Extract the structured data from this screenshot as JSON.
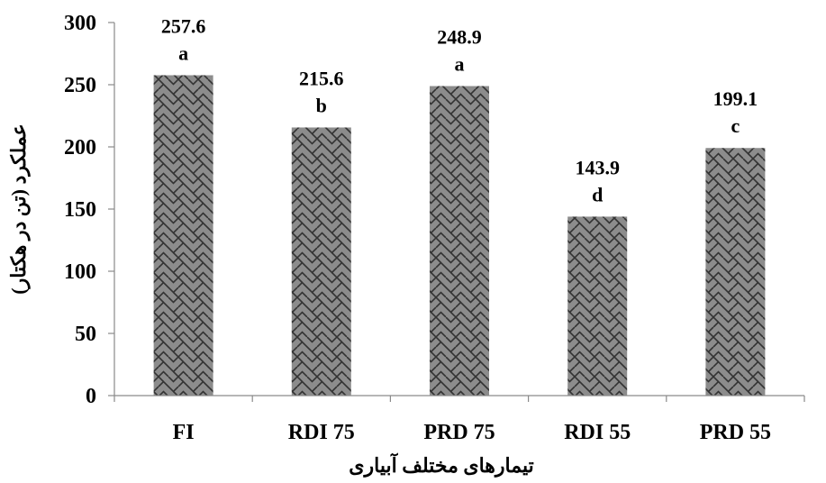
{
  "chart_data": {
    "type": "bar",
    "categories": [
      "FI",
      "RDI 75",
      "PRD 75",
      "RDI 55",
      "PRD 55"
    ],
    "values": [
      257.6,
      215.6,
      248.9,
      143.9,
      199.1
    ],
    "value_labels": [
      "257.6",
      "215.6",
      "248.9",
      "143.9",
      "199.1"
    ],
    "significance_letters": [
      "a",
      "b",
      "a",
      "d",
      "c"
    ],
    "title": "",
    "xlabel": "تیمارهای مختلف آبیاری",
    "ylabel": "عملکرد (تن در هکتار)",
    "ylim": [
      0,
      300
    ],
    "yticks": [
      0,
      50,
      100,
      150,
      200,
      250,
      300
    ],
    "grid": false,
    "legend": "none",
    "bar_fill_color": "#8c8c8c",
    "bar_pattern_color": "#333333"
  }
}
